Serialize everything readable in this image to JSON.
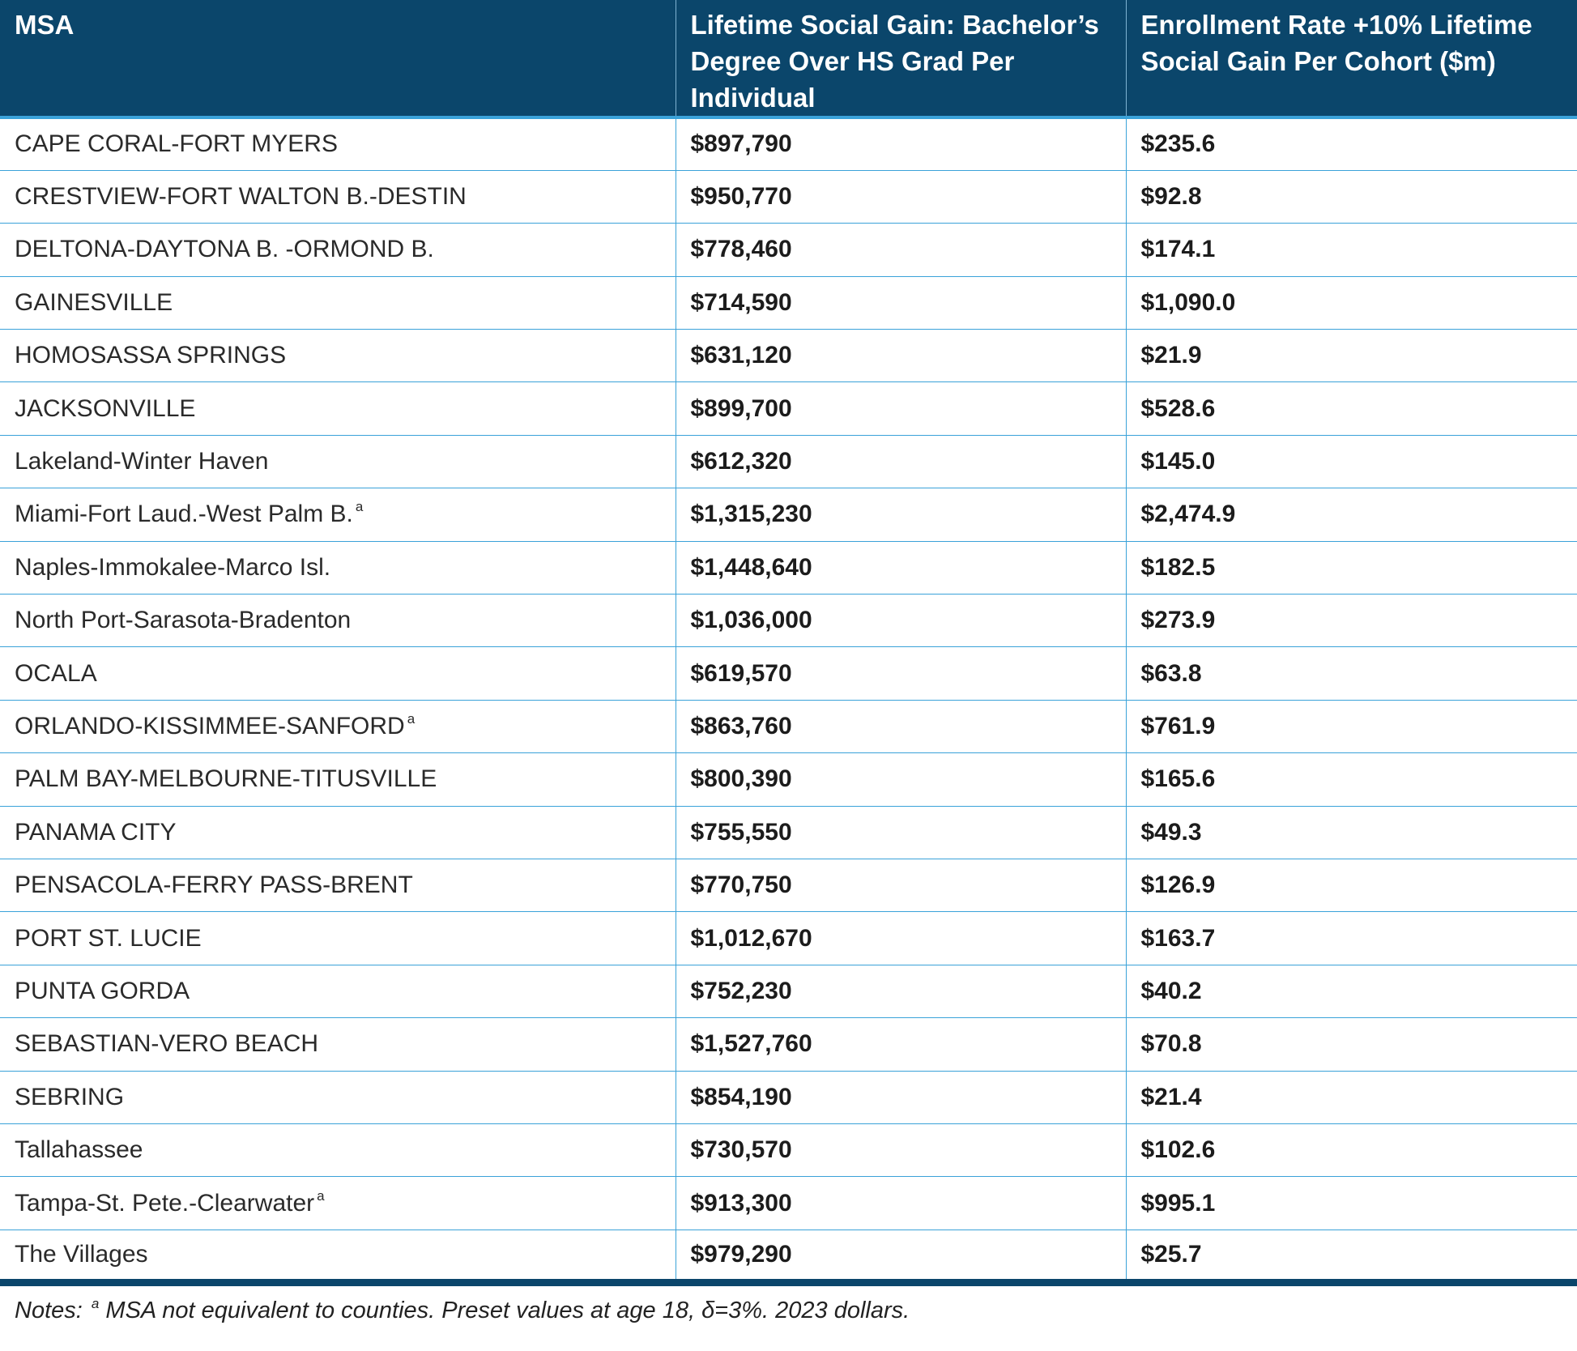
{
  "table": {
    "headers": [
      "MSA",
      "Lifetime Social Gain: Bachelor’s Degree Over HS Grad Per Individual",
      "Enrollment Rate +10% Lifetime Social Gain Per Cohort ($m)"
    ],
    "rows": [
      {
        "msa": "CAPE CORAL-FORT MYERS",
        "note": "",
        "individual": "$897,790",
        "cohort": "$235.6"
      },
      {
        "msa": "CRESTVIEW-FORT WALTON B.-DESTIN",
        "note": "",
        "individual": "$950,770",
        "cohort": "$92.8"
      },
      {
        "msa": "DELTONA-DAYTONA B. -ORMOND B.",
        "note": "",
        "individual": "$778,460",
        "cohort": "$174.1"
      },
      {
        "msa": "GAINESVILLE",
        "note": "",
        "individual": "$714,590",
        "cohort": "$1,090.0"
      },
      {
        "msa": "HOMOSASSA SPRINGS",
        "note": "",
        "individual": "$631,120",
        "cohort": "$21.9"
      },
      {
        "msa": "JACKSONVILLE",
        "note": "",
        "individual": "$899,700",
        "cohort": "$528.6"
      },
      {
        "msa": "Lakeland-Winter Haven",
        "note": "",
        "individual": "$612,320",
        "cohort": "$145.0"
      },
      {
        "msa": "Miami-Fort Laud.-West Palm B.",
        "note": "a",
        "individual": "$1,315,230",
        "cohort": "$2,474.9"
      },
      {
        "msa": "Naples-Immokalee-Marco Isl.",
        "note": "",
        "individual": "$1,448,640",
        "cohort": "$182.5"
      },
      {
        "msa": "North Port-Sarasota-Bradenton",
        "note": "",
        "individual": "$1,036,000",
        "cohort": "$273.9"
      },
      {
        "msa": "OCALA",
        "note": "",
        "individual": "$619,570",
        "cohort": "$63.8"
      },
      {
        "msa": "ORLANDO-KISSIMMEE-SANFORD",
        "note": "a",
        "individual": "$863,760",
        "cohort": "$761.9"
      },
      {
        "msa": "PALM BAY-MELBOURNE-TITUSVILLE",
        "note": "",
        "individual": "$800,390",
        "cohort": "$165.6"
      },
      {
        "msa": "PANAMA CITY",
        "note": "",
        "individual": "$755,550",
        "cohort": "$49.3"
      },
      {
        "msa": "PENSACOLA-FERRY PASS-BRENT",
        "note": "",
        "individual": "$770,750",
        "cohort": "$126.9"
      },
      {
        "msa": "PORT ST. LUCIE",
        "note": "",
        "individual": "$1,012,670",
        "cohort": "$163.7"
      },
      {
        "msa": "PUNTA GORDA",
        "note": "",
        "individual": "$752,230",
        "cohort": "$40.2"
      },
      {
        "msa": "SEBASTIAN-VERO BEACH",
        "note": "",
        "individual": "$1,527,760",
        "cohort": "$70.8"
      },
      {
        "msa": "SEBRING",
        "note": "",
        "individual": "$854,190",
        "cohort": "$21.4"
      },
      {
        "msa": "Tallahassee",
        "note": "",
        "individual": "$730,570",
        "cohort": "$102.6"
      },
      {
        "msa": "Tampa-St. Pete.-Clearwater",
        "note": "a",
        "individual": "$913,300",
        "cohort": "$995.1"
      },
      {
        "msa": "The Villages",
        "note": "",
        "individual": "$979,290",
        "cohort": "$25.7"
      }
    ]
  },
  "notes": {
    "label": "Notes:",
    "marker": "a",
    "text": "MSA not equivalent to counties. Preset values at age 18, δ=3%. 2023 dollars."
  },
  "colors": {
    "header_bg": "#0b466b",
    "grid": "#3aa2d9"
  }
}
